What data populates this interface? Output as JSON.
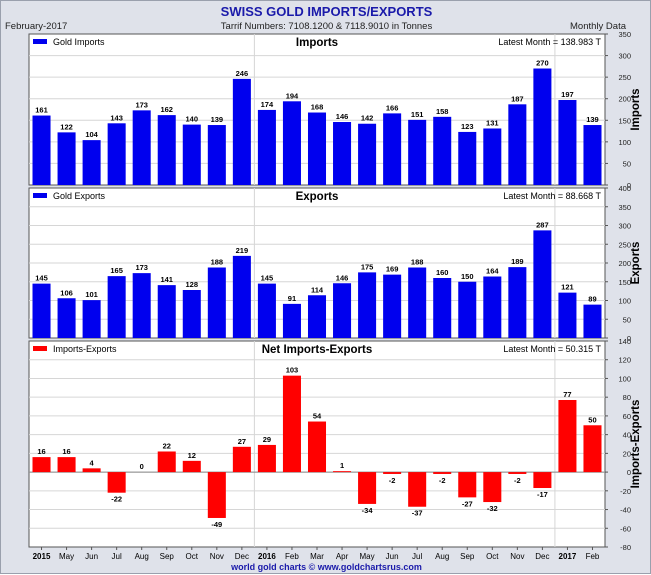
{
  "header": {
    "title": "SWISS GOLD IMPORTS/EXPORTS",
    "date": "February-2017",
    "tariff": "Tarrif Numbers: 7108.1200 & 7118.9010 in Tonnes",
    "frequency": "Monthly Data"
  },
  "footer": {
    "credit": "world gold charts © www.goldchartsrus.com"
  },
  "colors": {
    "bar_blue": "#0000ee",
    "bar_red": "#ff0000",
    "background": "#dfe2ea",
    "title": "#1a1aaa"
  },
  "x_axis_labels": [
    "2015",
    "May",
    "Jun",
    "Jul",
    "Aug",
    "Sep",
    "Oct",
    "Nov",
    "Dec",
    "2016",
    "Feb",
    "Mar",
    "Apr",
    "May",
    "Jun",
    "Jul",
    "Aug",
    "Sep",
    "Oct",
    "Nov",
    "Dec",
    "2017",
    "Feb"
  ],
  "chart_data": [
    {
      "type": "bar",
      "title": "Imports",
      "ylabel": "Imports",
      "legend": "Gold Imports",
      "legend_position": "top-left",
      "latest": "Latest Month = 138.983 T",
      "ylim": [
        0,
        350
      ],
      "yticks": [
        0,
        50,
        100,
        150,
        200,
        250,
        300,
        350
      ],
      "grid": true,
      "color": "#0000ee",
      "values": [
        161,
        122,
        104,
        143,
        173,
        162,
        140,
        139,
        246,
        174,
        194,
        168,
        146,
        142,
        166,
        151,
        158,
        123,
        131,
        187,
        270,
        197,
        139
      ]
    },
    {
      "type": "bar",
      "title": "Exports",
      "ylabel": "Exports",
      "legend": "Gold Exports",
      "legend_position": "top-left",
      "latest": "Latest Month = 88.668 T",
      "ylim": [
        0,
        400
      ],
      "yticks": [
        0,
        50,
        100,
        150,
        200,
        250,
        300,
        350,
        400
      ],
      "grid": true,
      "color": "#0000ee",
      "values": [
        145,
        106,
        101,
        165,
        173,
        141,
        128,
        188,
        219,
        145,
        91,
        114,
        146,
        175,
        169,
        188,
        160,
        150,
        164,
        189,
        287,
        121,
        89
      ]
    },
    {
      "type": "bar",
      "title": "Net Imports-Exports",
      "ylabel": "Imports-Exports",
      "legend": "Imports-Exports",
      "legend_position": "top-left",
      "latest": "Latest Month = 50.315 T",
      "ylim": [
        -80,
        140
      ],
      "yticks": [
        -80,
        -60,
        -40,
        -20,
        0,
        20,
        40,
        60,
        80,
        100,
        120,
        140
      ],
      "grid": true,
      "color": "#ff0000",
      "values": [
        16,
        16,
        4,
        -22,
        0,
        22,
        12,
        -49,
        27,
        29,
        103,
        54,
        1,
        -34,
        -2,
        -37,
        -2,
        -27,
        -32,
        -2,
        -17,
        77,
        50
      ]
    }
  ]
}
